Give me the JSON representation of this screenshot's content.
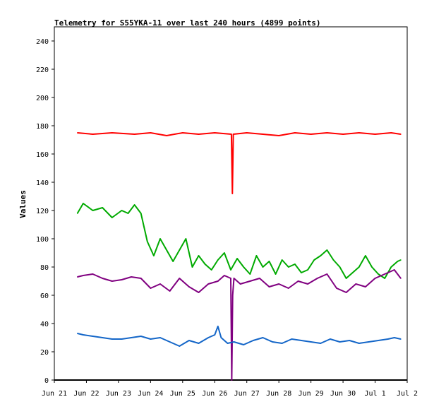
{
  "chart_data": {
    "type": "line",
    "title": "Telemetry for S55YKA-11 over last 240 hours (4899 points)",
    "xlabel": "",
    "ylabel": "Values",
    "ylim": [
      0,
      250
    ],
    "xlim": [
      0,
      11
    ],
    "y_ticks": [
      0,
      20,
      40,
      60,
      80,
      100,
      120,
      140,
      160,
      180,
      200,
      220,
      240
    ],
    "x_ticks": [
      {
        "x": 0,
        "label": "Jun 21"
      },
      {
        "x": 1,
        "label": "Jun 22"
      },
      {
        "x": 2,
        "label": "Jun 23"
      },
      {
        "x": 3,
        "label": "Jun 24"
      },
      {
        "x": 4,
        "label": "Jun 25"
      },
      {
        "x": 5,
        "label": "Jun 26"
      },
      {
        "x": 6,
        "label": "Jun 27"
      },
      {
        "x": 7,
        "label": "Jun 28"
      },
      {
        "x": 8,
        "label": "Jun 29"
      },
      {
        "x": 9,
        "label": "Jun 30"
      },
      {
        "x": 10,
        "label": "Jul 1"
      },
      {
        "x": 11,
        "label": "Jul 2"
      }
    ],
    "grid": false,
    "series": [
      {
        "color": "#ff0000",
        "x": [
          0.72,
          1.2,
          1.8,
          2.5,
          3.0,
          3.5,
          4.0,
          4.5,
          5.0,
          5.52,
          5.55,
          5.58,
          6.0,
          6.5,
          7.0,
          7.5,
          8.0,
          8.5,
          9.0,
          9.5,
          10.0,
          10.5,
          10.8
        ],
        "y": [
          175,
          174,
          175,
          174,
          175,
          173,
          175,
          174,
          175,
          174,
          132,
          174,
          175,
          174,
          173,
          175,
          174,
          175,
          174,
          175,
          174,
          175,
          174
        ]
      },
      {
        "color": "#00aa00",
        "x": [
          0.72,
          0.9,
          1.2,
          1.5,
          1.8,
          2.1,
          2.3,
          2.5,
          2.7,
          2.9,
          3.1,
          3.3,
          3.5,
          3.7,
          3.9,
          4.1,
          4.3,
          4.5,
          4.7,
          4.9,
          5.1,
          5.3,
          5.5,
          5.7,
          5.9,
          6.1,
          6.3,
          6.5,
          6.7,
          6.9,
          7.1,
          7.3,
          7.5,
          7.7,
          7.9,
          8.1,
          8.3,
          8.5,
          8.7,
          8.9,
          9.1,
          9.3,
          9.5,
          9.7,
          9.9,
          10.1,
          10.3,
          10.5,
          10.7,
          10.8
        ],
        "y": [
          118,
          125,
          120,
          122,
          115,
          120,
          118,
          124,
          118,
          98,
          88,
          100,
          92,
          84,
          92,
          100,
          80,
          88,
          82,
          78,
          85,
          90,
          78,
          86,
          80,
          75,
          88,
          80,
          84,
          75,
          85,
          80,
          82,
          76,
          78,
          85,
          88,
          92,
          85,
          80,
          72,
          76,
          80,
          88,
          80,
          75,
          72,
          80,
          84,
          85
        ]
      },
      {
        "color": "#800080",
        "x": [
          0.72,
          0.9,
          1.2,
          1.5,
          1.8,
          2.1,
          2.4,
          2.7,
          3.0,
          3.3,
          3.6,
          3.9,
          4.2,
          4.5,
          4.8,
          5.1,
          5.3,
          5.5,
          5.53,
          5.56,
          5.6,
          5.8,
          6.1,
          6.4,
          6.7,
          7.0,
          7.3,
          7.6,
          7.9,
          8.2,
          8.5,
          8.8,
          9.1,
          9.4,
          9.7,
          10.0,
          10.3,
          10.6,
          10.8
        ],
        "y": [
          73,
          74,
          75,
          72,
          70,
          71,
          73,
          72,
          65,
          68,
          63,
          72,
          66,
          62,
          68,
          70,
          74,
          72,
          0,
          60,
          72,
          68,
          70,
          72,
          66,
          68,
          65,
          70,
          68,
          72,
          75,
          65,
          62,
          68,
          66,
          72,
          75,
          78,
          72
        ]
      },
      {
        "color": "#1466c8",
        "x": [
          0.72,
          0.9,
          1.2,
          1.5,
          1.8,
          2.1,
          2.4,
          2.7,
          3.0,
          3.3,
          3.6,
          3.9,
          4.2,
          4.5,
          4.8,
          5.0,
          5.1,
          5.2,
          5.4,
          5.6,
          5.9,
          6.2,
          6.5,
          6.8,
          7.1,
          7.4,
          7.7,
          8.0,
          8.3,
          8.6,
          8.9,
          9.2,
          9.5,
          9.8,
          10.1,
          10.4,
          10.6,
          10.8
        ],
        "y": [
          33,
          32,
          31,
          30,
          29,
          29,
          30,
          31,
          29,
          30,
          27,
          24,
          28,
          26,
          30,
          32,
          38,
          30,
          26,
          27,
          25,
          28,
          30,
          27,
          26,
          29,
          28,
          27,
          26,
          29,
          27,
          28,
          26,
          27,
          28,
          29,
          30,
          29
        ]
      }
    ]
  }
}
